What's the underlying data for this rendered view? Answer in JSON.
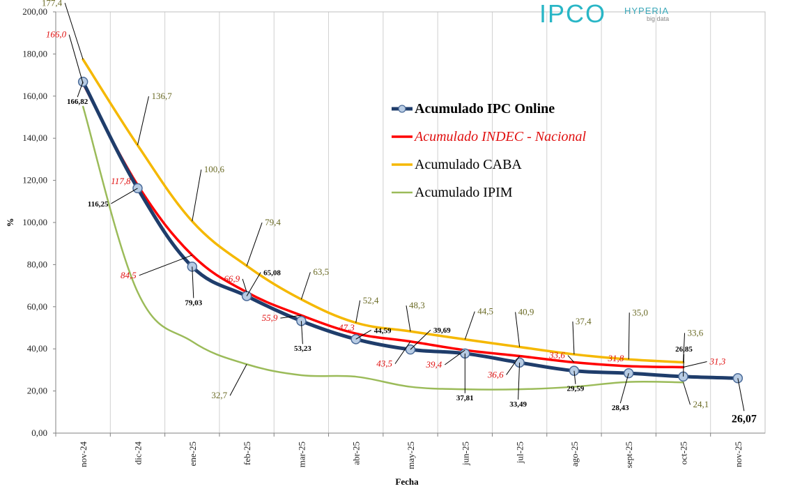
{
  "logos": {
    "ipco": "IPCO",
    "hyperia": "HYPERIA",
    "hyperia_sub": "big data"
  },
  "chart_data": {
    "type": "line",
    "title": "",
    "xlabel": "Fecha",
    "ylabel": "%",
    "ylim": [
      0,
      200
    ],
    "ytick_step": 20,
    "ytick_labels": [
      "0,00",
      "20,00",
      "40,00",
      "60,00",
      "80,00",
      "100,00",
      "120,00",
      "140,00",
      "160,00",
      "180,00",
      "200,00"
    ],
    "categories": [
      "nov-24",
      "dic-24",
      "ene-25",
      "feb-25",
      "mar-25",
      "abr-25",
      "may-25",
      "jun-25",
      "jul-25",
      "ago-25",
      "sept-25",
      "oct-25",
      "nov-25"
    ],
    "grid": "vertical",
    "legend_position": "center-right",
    "series": [
      {
        "name": "Acumulado IPIM",
        "color": "#9bbb59",
        "values": [
          155,
          67,
          43.5,
          32.7,
          27.5,
          26.8,
          22,
          20.8,
          20.8,
          22,
          24.3,
          24.1,
          null
        ],
        "labels": [
          "",
          "",
          "",
          "32,7",
          "",
          "",
          "",
          "",
          "",
          "",
          "",
          "24,1",
          ""
        ],
        "label_color": "#6b6b26"
      },
      {
        "name": "Acumulado CABA",
        "color": "#f5b800",
        "values": [
          177.4,
          136.7,
          100.6,
          79.4,
          63.5,
          52.4,
          48.3,
          44.5,
          40.9,
          37.4,
          35.0,
          33.6,
          null
        ],
        "labels": [
          "177,4",
          "136,7",
          "100,6",
          "79,4",
          "63,5",
          "52,4",
          "48,3",
          "44,5",
          "40,9",
          "37,4",
          "35,0",
          "33,6",
          ""
        ],
        "label_color": "#6b6b26"
      },
      {
        "name": "Acumulado INDEC - Nacional",
        "color": "#ff0000",
        "values": [
          166.0,
          117.8,
          84.5,
          66.9,
          55.9,
          47.3,
          43.5,
          39.4,
          36.6,
          33.6,
          31.8,
          31.3,
          null
        ],
        "labels": [
          "166,0",
          "117,8",
          "84,5",
          "66,9",
          "55,9",
          "47,3",
          "43,5",
          "39,4",
          "36,6",
          "33,6",
          "31,8",
          "31,3",
          ""
        ],
        "label_color": "#e01010"
      },
      {
        "name": "Acumulado IPC Online",
        "color": "#1f3d6b",
        "marker_fill": "#b8cce4",
        "values": [
          166.82,
          116.25,
          79.03,
          65.08,
          53.23,
          44.59,
          39.69,
          37.81,
          33.49,
          29.59,
          28.43,
          26.85,
          26.07
        ],
        "labels": [
          "166,82",
          "116,25",
          "79,03",
          "65,08",
          "53,23",
          "44,59",
          "39,69",
          "37,81",
          "33,49",
          "29,59",
          "28,43",
          "26,85",
          "26,07"
        ],
        "label_color": "#000000"
      }
    ],
    "legend_order": [
      "Acumulado IPC Online",
      "Acumulado INDEC - Nacional",
      "Acumulado CABA",
      "Acumulado IPIM"
    ]
  }
}
